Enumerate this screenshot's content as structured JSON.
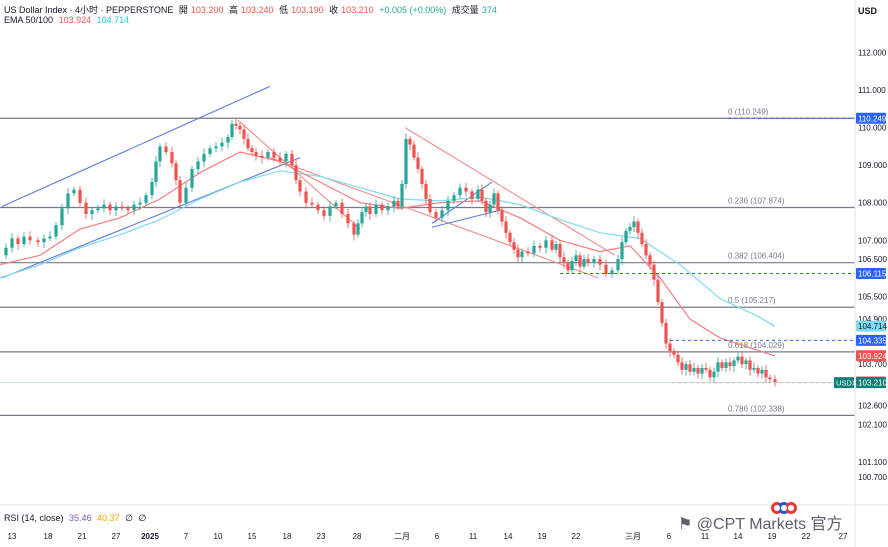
{
  "header": {
    "symbol": "US Dollar Index · 4小时 · PEPPERSTONE",
    "open_label": "開",
    "open": "103.200",
    "high_label": "高",
    "high": "103.240",
    "low_label": "低",
    "low": "103.190",
    "close_label": "收",
    "close": "103.210",
    "change": "+0.005 (+0.00%)",
    "volume_label": "成交量",
    "volume": "374",
    "ema_label": "EMA 50/100",
    "ema50": "103.924",
    "ema100": "104.714"
  },
  "currency": "USD",
  "rsi": {
    "label": "RSI (14, close)",
    "v1": "35.46",
    "v2": "40.37",
    "v3": "∅",
    "v4": "∅"
  },
  "watermark": "⚑ @CPT Markets 官方",
  "colors": {
    "up": "#26a69a",
    "down": "#ef5350",
    "ema50": "#f77c80",
    "ema100": "#7fdbf0",
    "fib": "#787b86",
    "channel_up": "#5b7bd9",
    "channel_down": "#f28b8b",
    "dash": "#2962ff",
    "current": "#0e8078"
  },
  "chart_data": {
    "type": "candlestick",
    "x_ticks": [
      "13",
      "18",
      "21",
      "27",
      "2025",
      "7",
      "10",
      "15",
      "18",
      "23",
      "28",
      "二月",
      "6",
      "11",
      "14",
      "19",
      "22",
      "三月",
      "6",
      "11",
      "14",
      "19",
      "22",
      "27"
    ],
    "y_ticks": [
      "112.000",
      "111.000",
      "110.000",
      "109.000",
      "108.000",
      "107.000",
      "106.500",
      "105.500",
      "104.900",
      "103.700",
      "102.600",
      "102.100",
      "101.100",
      "100.700"
    ],
    "y_range": [
      100.35,
      112.6
    ],
    "fib_levels": [
      {
        "label": "0 (110.249)",
        "value": 110.249
      },
      {
        "label": "0.236 (107.874)",
        "value": 107.874
      },
      {
        "label": "0.382 (106.404)",
        "value": 106.404
      },
      {
        "label": "0.5 (105.217)",
        "value": 105.217
      },
      {
        "label": "0.618 (104.029)",
        "value": 104.029
      },
      {
        "label": "0.786 (102.338)",
        "value": 102.338
      }
    ],
    "price_tags": [
      {
        "text": "110.249",
        "value": 110.249,
        "bg": "#2962ff",
        "fg": "#ffffff"
      },
      {
        "text": "106.115",
        "value": 106.115,
        "bg": "#2962ff",
        "fg": "#ffffff"
      },
      {
        "text": "104.714",
        "value": 104.714,
        "bg": "#7fdbf0",
        "fg": "#131722"
      },
      {
        "text": "104.335",
        "value": 104.335,
        "bg": "#2962ff",
        "fg": "#ffffff"
      },
      {
        "text": "103.924",
        "value": 103.924,
        "bg": "#ef5350",
        "fg": "#ffffff"
      },
      {
        "text": "103.227",
        "value": 103.227,
        "bg": "#ef5350",
        "fg": "#ffffff"
      },
      {
        "text": "103.210",
        "value": 103.21,
        "bg": "#0e8078",
        "fg": "#ffffff"
      }
    ],
    "current_symbol": "USDX",
    "current_price": 103.21,
    "price_path": [
      [
        0,
        106.6
      ],
      [
        6,
        106.8
      ],
      [
        12,
        107.05
      ],
      [
        18,
        106.9
      ],
      [
        24,
        107.1
      ],
      [
        30,
        107.0
      ],
      [
        38,
        106.95
      ],
      [
        44,
        107.05
      ],
      [
        50,
        107.1
      ],
      [
        56,
        107.4
      ],
      [
        62,
        107.85
      ],
      [
        68,
        108.25
      ],
      [
        74,
        108.35
      ],
      [
        80,
        108.0
      ],
      [
        86,
        107.7
      ],
      [
        92,
        107.8
      ],
      [
        98,
        107.85
      ],
      [
        104,
        107.95
      ],
      [
        110,
        107.8
      ],
      [
        116,
        107.9
      ],
      [
        122,
        107.85
      ],
      [
        128,
        107.8
      ],
      [
        134,
        107.95
      ],
      [
        140,
        108.0
      ],
      [
        146,
        108.2
      ],
      [
        152,
        108.55
      ],
      [
        156,
        109.1
      ],
      [
        160,
        109.5
      ],
      [
        166,
        109.35
      ],
      [
        172,
        109.05
      ],
      [
        176,
        108.6
      ],
      [
        180,
        108.0
      ],
      [
        186,
        108.4
      ],
      [
        192,
        108.9
      ],
      [
        198,
        109.1
      ],
      [
        204,
        109.3
      ],
      [
        210,
        109.45
      ],
      [
        216,
        109.5
      ],
      [
        222,
        109.6
      ],
      [
        228,
        109.75
      ],
      [
        232,
        110.1
      ],
      [
        236,
        110.05
      ],
      [
        240,
        109.95
      ],
      [
        244,
        109.7
      ],
      [
        248,
        109.45
      ],
      [
        252,
        109.35
      ],
      [
        256,
        109.25
      ],
      [
        262,
        109.2
      ],
      [
        268,
        109.35
      ],
      [
        274,
        109.2
      ],
      [
        280,
        109.1
      ],
      [
        286,
        109.3
      ],
      [
        292,
        109.0
      ],
      [
        296,
        108.6
      ],
      [
        300,
        108.3
      ],
      [
        306,
        108.0
      ],
      [
        312,
        107.95
      ],
      [
        318,
        107.8
      ],
      [
        324,
        107.65
      ],
      [
        330,
        107.9
      ],
      [
        336,
        108.0
      ],
      [
        342,
        107.7
      ],
      [
        348,
        107.45
      ],
      [
        354,
        107.15
      ],
      [
        358,
        107.45
      ],
      [
        362,
        107.75
      ],
      [
        366,
        107.9
      ],
      [
        370,
        107.7
      ],
      [
        376,
        107.95
      ],
      [
        382,
        107.8
      ],
      [
        388,
        107.9
      ],
      [
        394,
        108.05
      ],
      [
        398,
        107.9
      ],
      [
        402,
        108.5
      ],
      [
        406,
        109.7
      ],
      [
        410,
        109.55
      ],
      [
        414,
        109.2
      ],
      [
        418,
        108.9
      ],
      [
        422,
        108.5
      ],
      [
        426,
        108.1
      ],
      [
        430,
        107.75
      ],
      [
        436,
        107.6
      ],
      [
        442,
        107.8
      ],
      [
        448,
        108.05
      ],
      [
        454,
        108.2
      ],
      [
        460,
        108.4
      ],
      [
        466,
        108.3
      ],
      [
        472,
        108.1
      ],
      [
        478,
        108.35
      ],
      [
        482,
        108.05
      ],
      [
        486,
        107.75
      ],
      [
        490,
        107.95
      ],
      [
        494,
        108.25
      ],
      [
        498,
        107.8
      ],
      [
        502,
        107.5
      ],
      [
        506,
        107.2
      ],
      [
        510,
        106.95
      ],
      [
        514,
        106.75
      ],
      [
        518,
        106.55
      ],
      [
        522,
        106.7
      ],
      [
        528,
        106.65
      ],
      [
        534,
        106.85
      ],
      [
        540,
        106.8
      ],
      [
        546,
        107.0
      ],
      [
        552,
        106.75
      ],
      [
        556,
        106.9
      ],
      [
        560,
        106.55
      ],
      [
        564,
        106.4
      ],
      [
        568,
        106.2
      ],
      [
        572,
        106.45
      ],
      [
        576,
        106.6
      ],
      [
        580,
        106.3
      ],
      [
        584,
        106.5
      ],
      [
        588,
        106.4
      ],
      [
        594,
        106.5
      ],
      [
        600,
        106.35
      ],
      [
        606,
        106.1
      ],
      [
        612,
        106.2
      ],
      [
        618,
        106.5
      ],
      [
        622,
        106.95
      ],
      [
        626,
        107.25
      ],
      [
        630,
        107.35
      ],
      [
        634,
        107.5
      ],
      [
        638,
        107.2
      ],
      [
        642,
        106.9
      ],
      [
        646,
        106.6
      ],
      [
        650,
        106.35
      ],
      [
        654,
        105.95
      ],
      [
        658,
        105.35
      ],
      [
        662,
        104.8
      ],
      [
        666,
        104.25
      ],
      [
        670,
        104.05
      ],
      [
        674,
        103.95
      ],
      [
        678,
        103.75
      ],
      [
        682,
        103.55
      ],
      [
        686,
        103.7
      ],
      [
        690,
        103.5
      ],
      [
        694,
        103.6
      ],
      [
        698,
        103.45
      ],
      [
        702,
        103.6
      ],
      [
        706,
        103.55
      ],
      [
        710,
        103.35
      ],
      [
        714,
        103.5
      ],
      [
        718,
        103.75
      ],
      [
        722,
        103.6
      ],
      [
        726,
        103.75
      ],
      [
        730,
        103.65
      ],
      [
        734,
        103.8
      ],
      [
        738,
        103.9
      ],
      [
        742,
        103.7
      ],
      [
        746,
        103.8
      ],
      [
        750,
        103.55
      ],
      [
        754,
        103.6
      ],
      [
        758,
        103.45
      ],
      [
        762,
        103.55
      ],
      [
        766,
        103.35
      ],
      [
        770,
        103.3
      ],
      [
        775,
        103.21
      ]
    ],
    "ema50_path": [
      [
        0,
        106.35
      ],
      [
        40,
        106.6
      ],
      [
        80,
        107.3
      ],
      [
        120,
        107.6
      ],
      [
        160,
        108.1
      ],
      [
        200,
        108.8
      ],
      [
        240,
        109.35
      ],
      [
        280,
        109.1
      ],
      [
        320,
        108.55
      ],
      [
        360,
        108.0
      ],
      [
        400,
        107.85
      ],
      [
        440,
        108.0
      ],
      [
        480,
        108.05
      ],
      [
        520,
        107.6
      ],
      [
        560,
        107.0
      ],
      [
        600,
        106.7
      ],
      [
        630,
        106.85
      ],
      [
        660,
        106.0
      ],
      [
        690,
        104.9
      ],
      [
        720,
        104.4
      ],
      [
        760,
        104.05
      ],
      [
        775,
        103.92
      ]
    ],
    "ema100_path": [
      [
        0,
        106.0
      ],
      [
        40,
        106.35
      ],
      [
        80,
        106.8
      ],
      [
        120,
        107.15
      ],
      [
        160,
        107.55
      ],
      [
        200,
        108.1
      ],
      [
        240,
        108.55
      ],
      [
        280,
        108.85
      ],
      [
        320,
        108.7
      ],
      [
        360,
        108.4
      ],
      [
        400,
        108.1
      ],
      [
        440,
        108.05
      ],
      [
        480,
        108.15
      ],
      [
        520,
        107.95
      ],
      [
        560,
        107.55
      ],
      [
        600,
        107.2
      ],
      [
        640,
        107.05
      ],
      [
        680,
        106.35
      ],
      [
        720,
        105.45
      ],
      [
        760,
        104.95
      ],
      [
        775,
        104.71
      ]
    ],
    "channels": [
      {
        "color": "#5b7bd9",
        "from": [
          2,
          107.9
        ],
        "to": [
          270,
          111.1
        ]
      },
      {
        "color": "#5b7bd9",
        "from": [
          2,
          106.0
        ],
        "to": [
          300,
          109.2
        ]
      },
      {
        "color": "#f28b8b",
        "from": [
          238,
          110.2
        ],
        "to": [
          360,
          107.3
        ]
      },
      {
        "color": "#f28b8b",
        "from": [
          270,
          109.2
        ],
        "to": [
          598,
          106.0
        ]
      },
      {
        "color": "#f28b8b",
        "from": [
          405,
          110.0
        ],
        "to": [
          615,
          106.6
        ]
      },
      {
        "color": "#5b7bd9",
        "from": [
          432,
          107.35
        ],
        "to": [
          500,
          107.8
        ]
      },
      {
        "color": "#5b7bd9",
        "from": [
          432,
          107.45
        ],
        "to": [
          492,
          108.55
        ]
      }
    ]
  }
}
